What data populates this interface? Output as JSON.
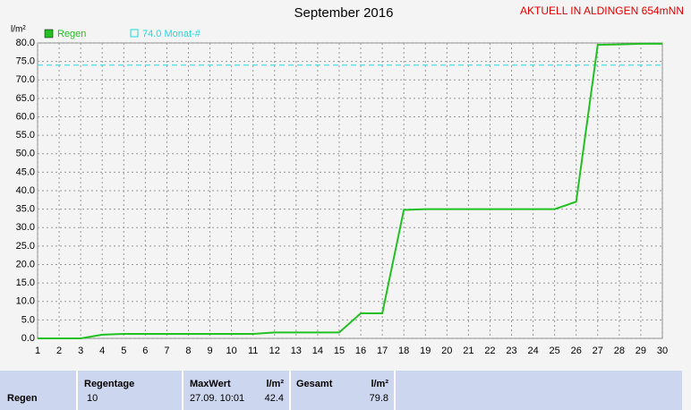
{
  "chart_data": {
    "type": "line",
    "title": "September 2016",
    "station": "AKTUELL IN ALDINGEN 654mNN",
    "y_label": "l/m²",
    "x": [
      1,
      2,
      3,
      4,
      5,
      6,
      7,
      8,
      9,
      10,
      11,
      12,
      13,
      14,
      15,
      16,
      17,
      18,
      19,
      20,
      21,
      22,
      23,
      24,
      25,
      26,
      27,
      28,
      29,
      30
    ],
    "series": [
      {
        "name": "Regen",
        "color": "#22c022",
        "values": [
          0,
          0,
          0,
          1.0,
          1.2,
          1.2,
          1.2,
          1.2,
          1.2,
          1.2,
          1.2,
          1.6,
          1.6,
          1.6,
          1.6,
          6.8,
          6.8,
          34.8,
          35.0,
          35.0,
          35.0,
          35.0,
          35.0,
          35.0,
          35.0,
          37.0,
          79.5,
          79.6,
          79.8,
          79.8
        ]
      }
    ],
    "reference": {
      "value": 74.0,
      "label": "74.0 Monat-#",
      "color": "#22d8e0"
    },
    "xlim": [
      1,
      30
    ],
    "ylim": [
      0,
      80
    ],
    "xticks": [
      1,
      2,
      3,
      4,
      5,
      6,
      7,
      8,
      9,
      10,
      11,
      12,
      13,
      14,
      15,
      16,
      17,
      18,
      19,
      20,
      21,
      22,
      23,
      24,
      25,
      26,
      27,
      28,
      29,
      30
    ],
    "yticks": [
      {
        "value": 0,
        "label": "0.0"
      },
      {
        "value": 5,
        "label": "5.0"
      },
      {
        "value": 10,
        "label": "10.0"
      },
      {
        "value": 15,
        "label": "15.0"
      },
      {
        "value": 20,
        "label": "20.0"
      },
      {
        "value": 25,
        "label": "25.0"
      },
      {
        "value": 30,
        "label": "30.0"
      },
      {
        "value": 35,
        "label": "35.0"
      },
      {
        "value": 40,
        "label": "40.0"
      },
      {
        "value": 45,
        "label": "45.0"
      },
      {
        "value": 50,
        "label": "50.0"
      },
      {
        "value": 55,
        "label": "55.0"
      },
      {
        "value": 60,
        "label": "60.0"
      },
      {
        "value": 65,
        "label": "65.0"
      },
      {
        "value": 70,
        "label": "70.0"
      },
      {
        "value": 75,
        "label": "75.0"
      },
      {
        "value": 80,
        "label": "80.0"
      }
    ],
    "grid": true
  },
  "summary": {
    "row_label": "Regen",
    "regentage": {
      "header": "Regentage",
      "value": "10"
    },
    "maxwert": {
      "header": "MaxWert",
      "unit": "l/m²",
      "time": "27.09. 10:01",
      "value": "42.4"
    },
    "gesamt": {
      "header": "Gesamt",
      "unit": "l/m²",
      "value": "79.8"
    }
  }
}
